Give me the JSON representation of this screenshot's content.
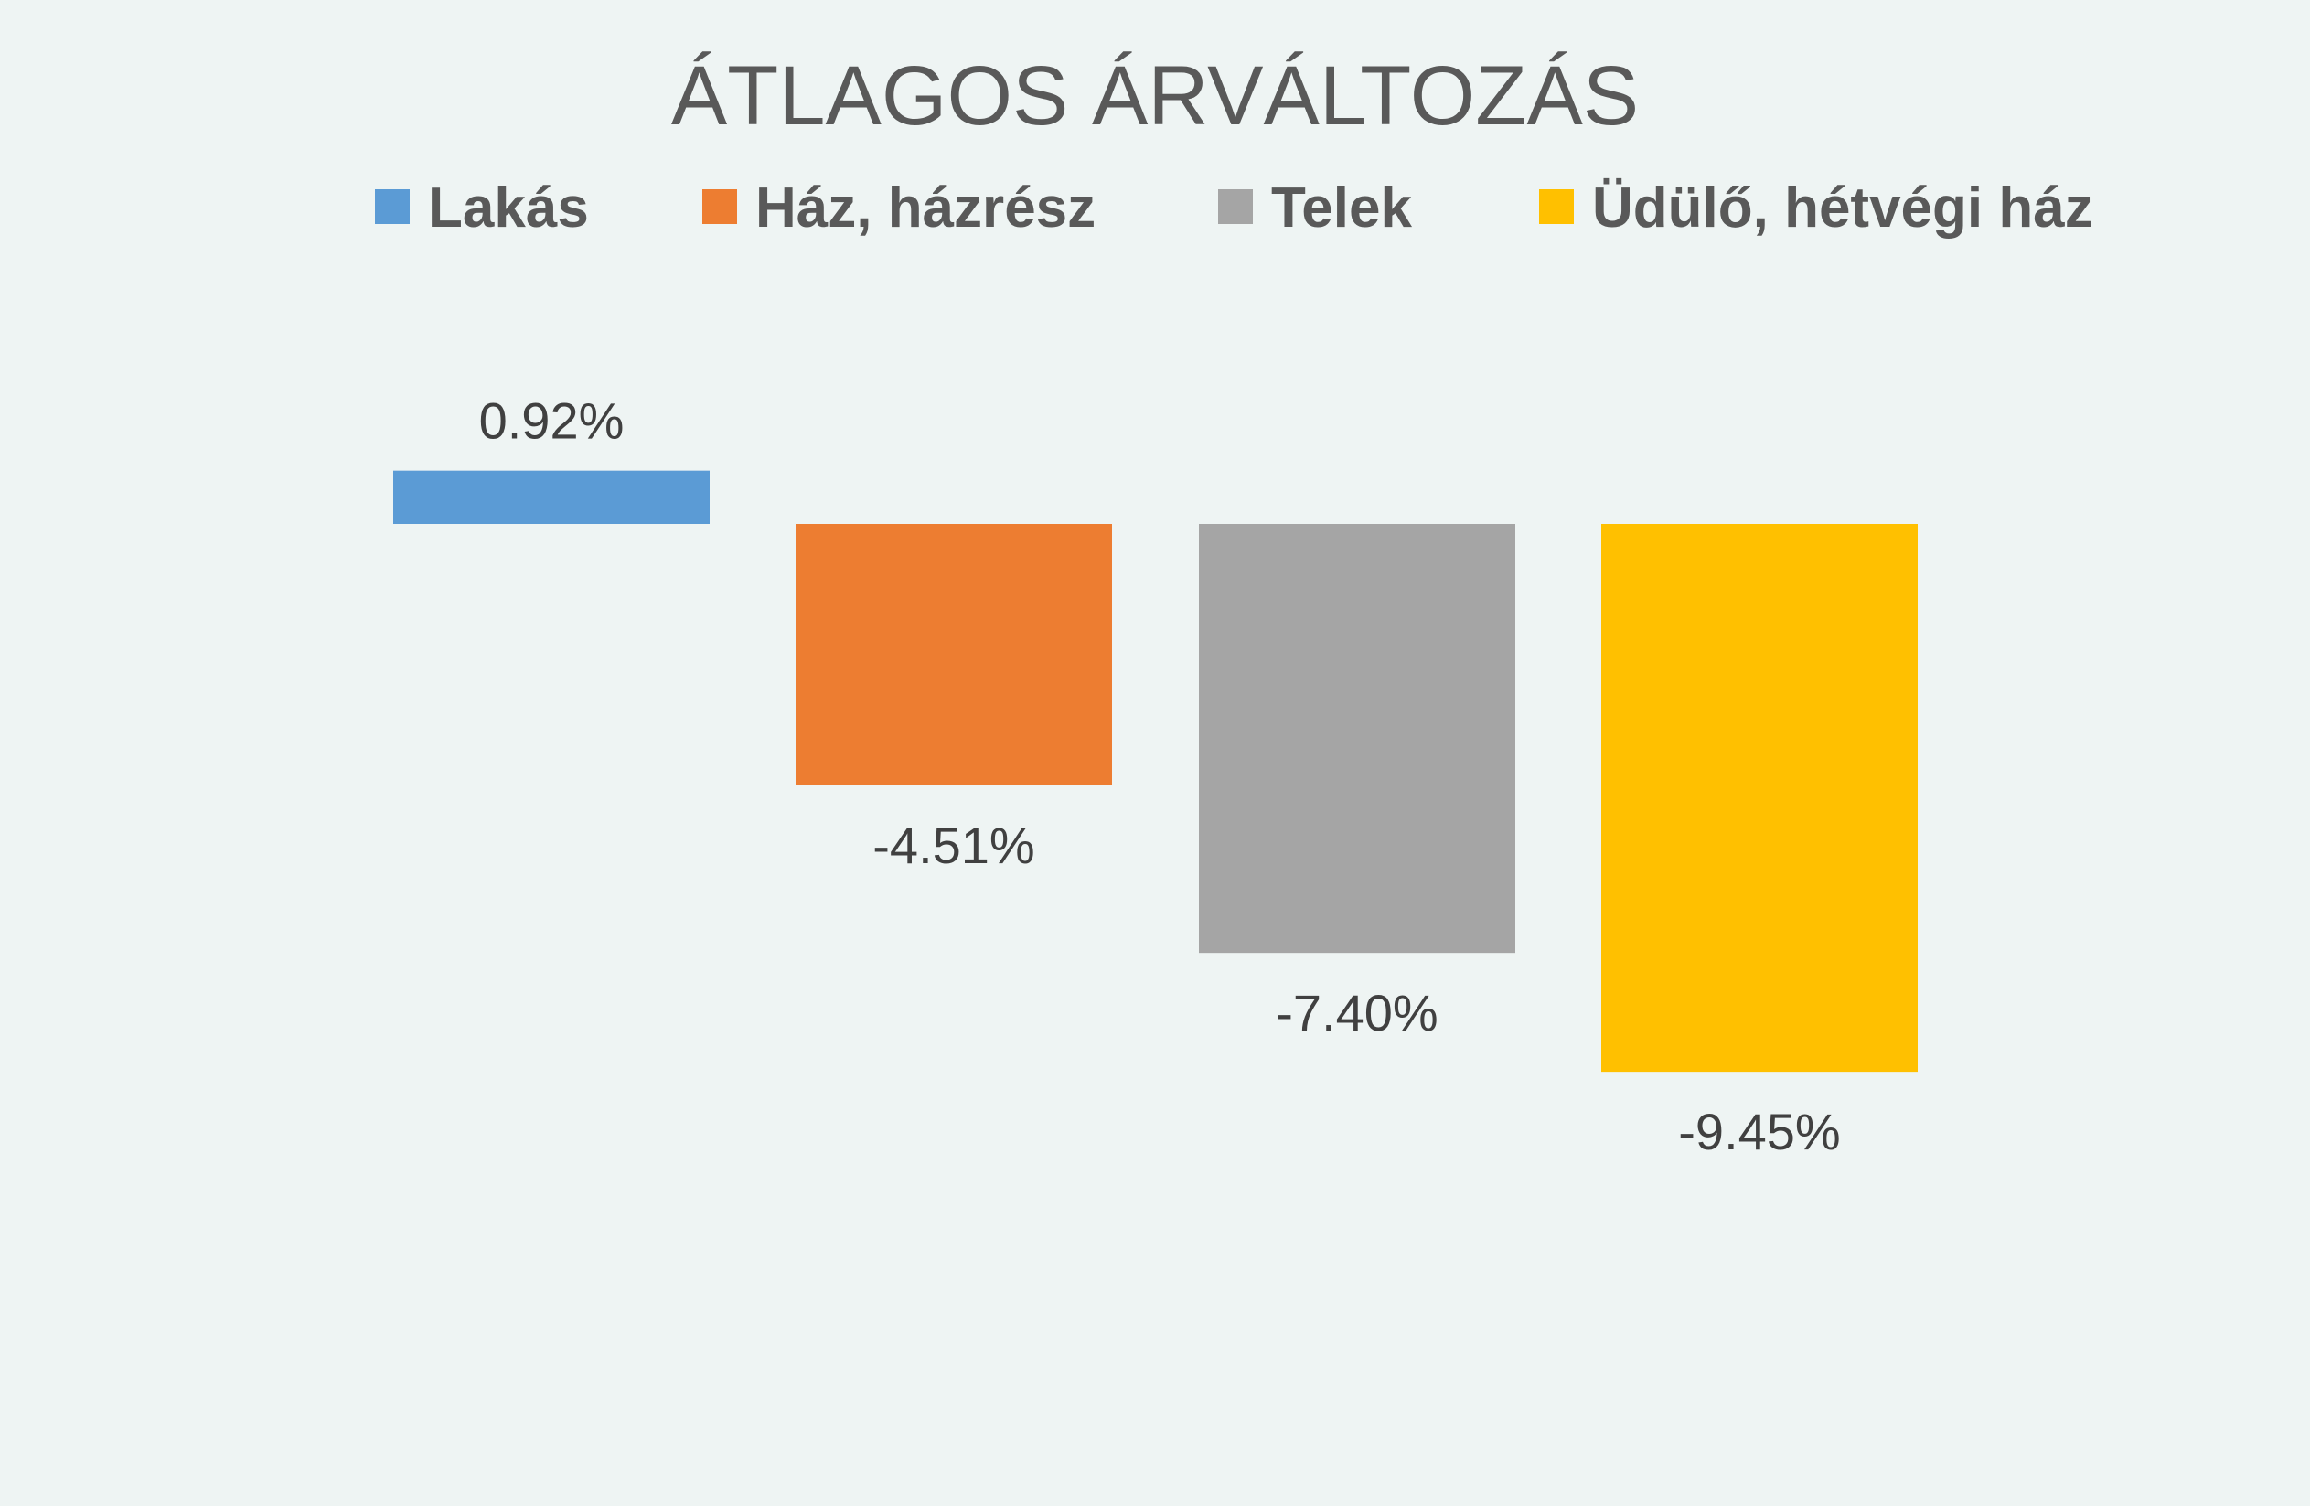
{
  "chart_data": {
    "type": "bar",
    "title": "ÁTLAGOS ÁRVÁLTOZÁS",
    "categories": [
      "Lakás",
      "Ház, házrész",
      "Telek",
      "Üdülő, hétvégi ház"
    ],
    "values": [
      0.92,
      -4.51,
      -7.4,
      -9.45
    ],
    "data_labels": [
      "0.92%",
      "-4.51%",
      "-7.40%",
      "-9.45%"
    ],
    "colors": [
      "#5B9BD5",
      "#ED7D31",
      "#A5A5A5",
      "#FFC000"
    ],
    "unit": "%",
    "legend": {
      "position": "top",
      "entries": [
        "Lakás",
        "Ház, házrész",
        "Telek",
        "Üdülő, hétvégi ház"
      ]
    },
    "xlabel": "",
    "ylabel": "",
    "grid": false,
    "axes_visible": false
  }
}
